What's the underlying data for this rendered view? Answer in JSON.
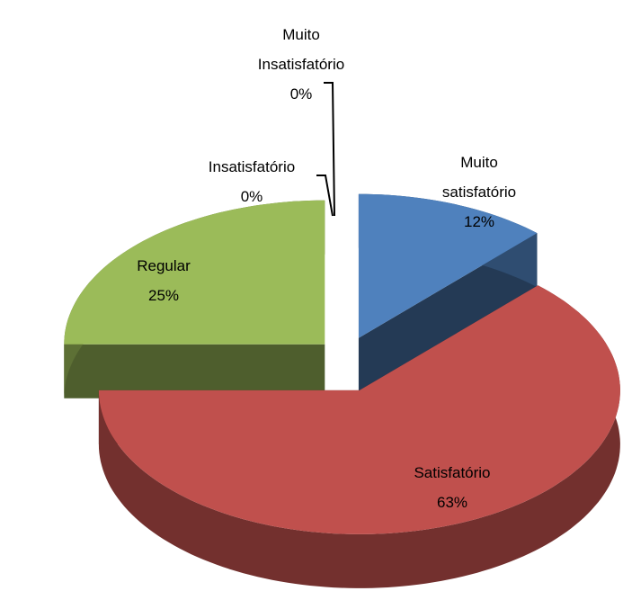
{
  "chart_data": {
    "type": "pie",
    "categories": [
      "Muito satisfatório",
      "Satisfatório",
      "Regular",
      "Insatisfatório",
      "Muito Insatisfatório"
    ],
    "values": [
      12,
      63,
      25,
      0,
      0
    ],
    "value_labels": [
      "12%",
      "63%",
      "25%",
      "0%",
      "0%"
    ],
    "colors": [
      "#4f81bd",
      "#c0504d",
      "#9bbb59",
      "#8064a2",
      "#4bacc6"
    ]
  }
}
